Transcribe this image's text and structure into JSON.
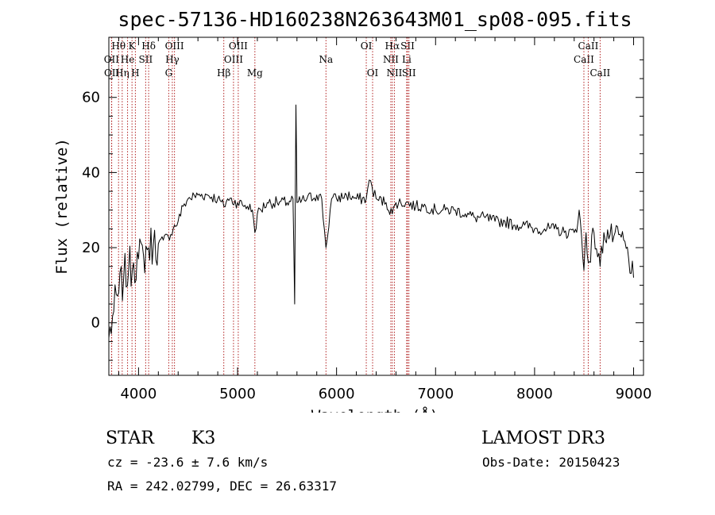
{
  "colors": {
    "spectrum": "#000000",
    "line_marker": "#b22222",
    "axis": "#000000",
    "background": "#ffffff"
  },
  "chart_data": {
    "type": "line",
    "title": "spec-57136-HD160238N263643M01_sp08-095.fits",
    "xlabel": "Wavelength (Å)",
    "ylabel": "Flux (relative)",
    "xlim": [
      3700,
      9100
    ],
    "ylim": [
      -14,
      76
    ],
    "xticks": [
      4000,
      5000,
      6000,
      7000,
      8000,
      9000
    ],
    "yticks": [
      0,
      20,
      40,
      60
    ],
    "grid": false,
    "legend": "none",
    "series": [
      {
        "name": "flux",
        "x": [
          3700,
          3750,
          3800,
          3850,
          3900,
          3950,
          4000,
          4050,
          4100,
          4150,
          4200,
          4250,
          4300,
          4350,
          4400,
          4450,
          4500,
          4600,
          4700,
          4800,
          4861,
          4900,
          5000,
          5100,
          5150,
          5175,
          5200,
          5300,
          5400,
          5500,
          5560,
          5577,
          5590,
          5600,
          5700,
          5800,
          5850,
          5893,
          5950,
          6000,
          6100,
          6200,
          6300,
          6330,
          6400,
          6500,
          6563,
          6600,
          6700,
          6800,
          6900,
          7000,
          7100,
          7200,
          7300,
          7400,
          7500,
          7600,
          7700,
          7800,
          7900,
          8000,
          8100,
          8200,
          8300,
          8400,
          8450,
          8498,
          8520,
          8542,
          8600,
          8662,
          8700,
          8800,
          8900,
          9000
        ],
        "y": [
          -4,
          3,
          8,
          12,
          14,
          16,
          17,
          18,
          20,
          21,
          21,
          22,
          23,
          25,
          27,
          31,
          33,
          34,
          34,
          33,
          31,
          33,
          32,
          31,
          30,
          24,
          29,
          32,
          32,
          32,
          33,
          5,
          58,
          32,
          33,
          34,
          33,
          20,
          33,
          33,
          34,
          33,
          33,
          38,
          33,
          32,
          29,
          32,
          32,
          31,
          31,
          30,
          30,
          30,
          29,
          28,
          28,
          27,
          27,
          26,
          26,
          25,
          25,
          25,
          24,
          24,
          30,
          14,
          24,
          16,
          24,
          15,
          24,
          23,
          22,
          12
        ]
      }
    ],
    "line_markers": [
      {
        "label": "Hθ",
        "x": 3798,
        "row": 1
      },
      {
        "label": "OII",
        "x": 3727,
        "row": 2
      },
      {
        "label": "OII",
        "x": 3729,
        "row": 3
      },
      {
        "label": "Hη",
        "x": 3835,
        "row": 3
      },
      {
        "label": "He",
        "x": 3889,
        "row": 2
      },
      {
        "label": "K",
        "x": 3934,
        "row": 1
      },
      {
        "label": "H",
        "x": 3968,
        "row": 3
      },
      {
        "label": "SII",
        "x": 4072,
        "row": 2
      },
      {
        "label": "Hδ",
        "x": 4102,
        "row": 1
      },
      {
        "label": "OIII",
        "x": 4363,
        "row": 1
      },
      {
        "label": "Hγ",
        "x": 4341,
        "row": 2
      },
      {
        "label": "G",
        "x": 4305,
        "row": 3
      },
      {
        "label": "Hβ",
        "x": 4861,
        "row": 3
      },
      {
        "label": "OIII",
        "x": 4959,
        "row": 2
      },
      {
        "label": "OIII",
        "x": 5007,
        "row": 1
      },
      {
        "label": "Mg",
        "x": 5175,
        "row": 3
      },
      {
        "label": "Na",
        "x": 5893,
        "row": 2
      },
      {
        "label": "OI",
        "x": 6300,
        "row": 1
      },
      {
        "label": "OI",
        "x": 6364,
        "row": 3
      },
      {
        "label": "NII",
        "x": 6548,
        "row": 2
      },
      {
        "label": "Hα",
        "x": 6563,
        "row": 1
      },
      {
        "label": "NII",
        "x": 6584,
        "row": 3
      },
      {
        "label": "SII",
        "x": 6717,
        "row": 1
      },
      {
        "label": "Li",
        "x": 6708,
        "row": 2
      },
      {
        "label": "SII",
        "x": 6731,
        "row": 3
      },
      {
        "label": "CaII",
        "x": 8498,
        "row": 2
      },
      {
        "label": "CaII",
        "x": 8542,
        "row": 1
      },
      {
        "label": "CaII",
        "x": 8662,
        "row": 3
      }
    ]
  },
  "info": {
    "object_class": "STAR",
    "subclass": "K3",
    "survey": "LAMOST DR3",
    "velocity": "cz = -23.6 ± 7.6 km/s",
    "obs_date": "Obs-Date: 20150423",
    "coordinates": "RA = 242.02799, DEC =  26.63317"
  }
}
